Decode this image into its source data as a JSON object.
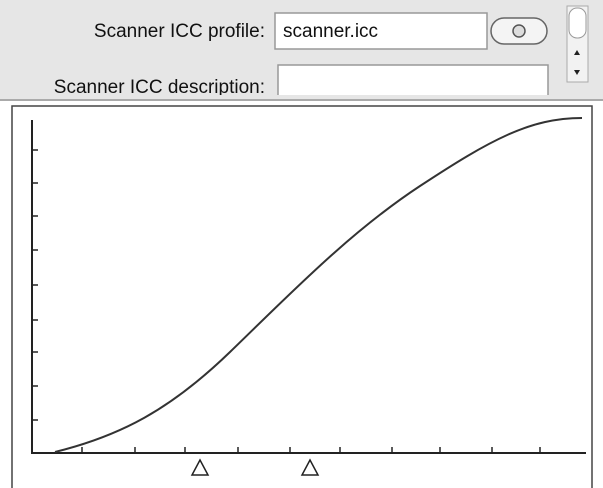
{
  "form": {
    "profile_label": "Scanner ICC profile:",
    "profile_value": "scanner.icc",
    "description_label": "Scanner ICC description:"
  }
}
